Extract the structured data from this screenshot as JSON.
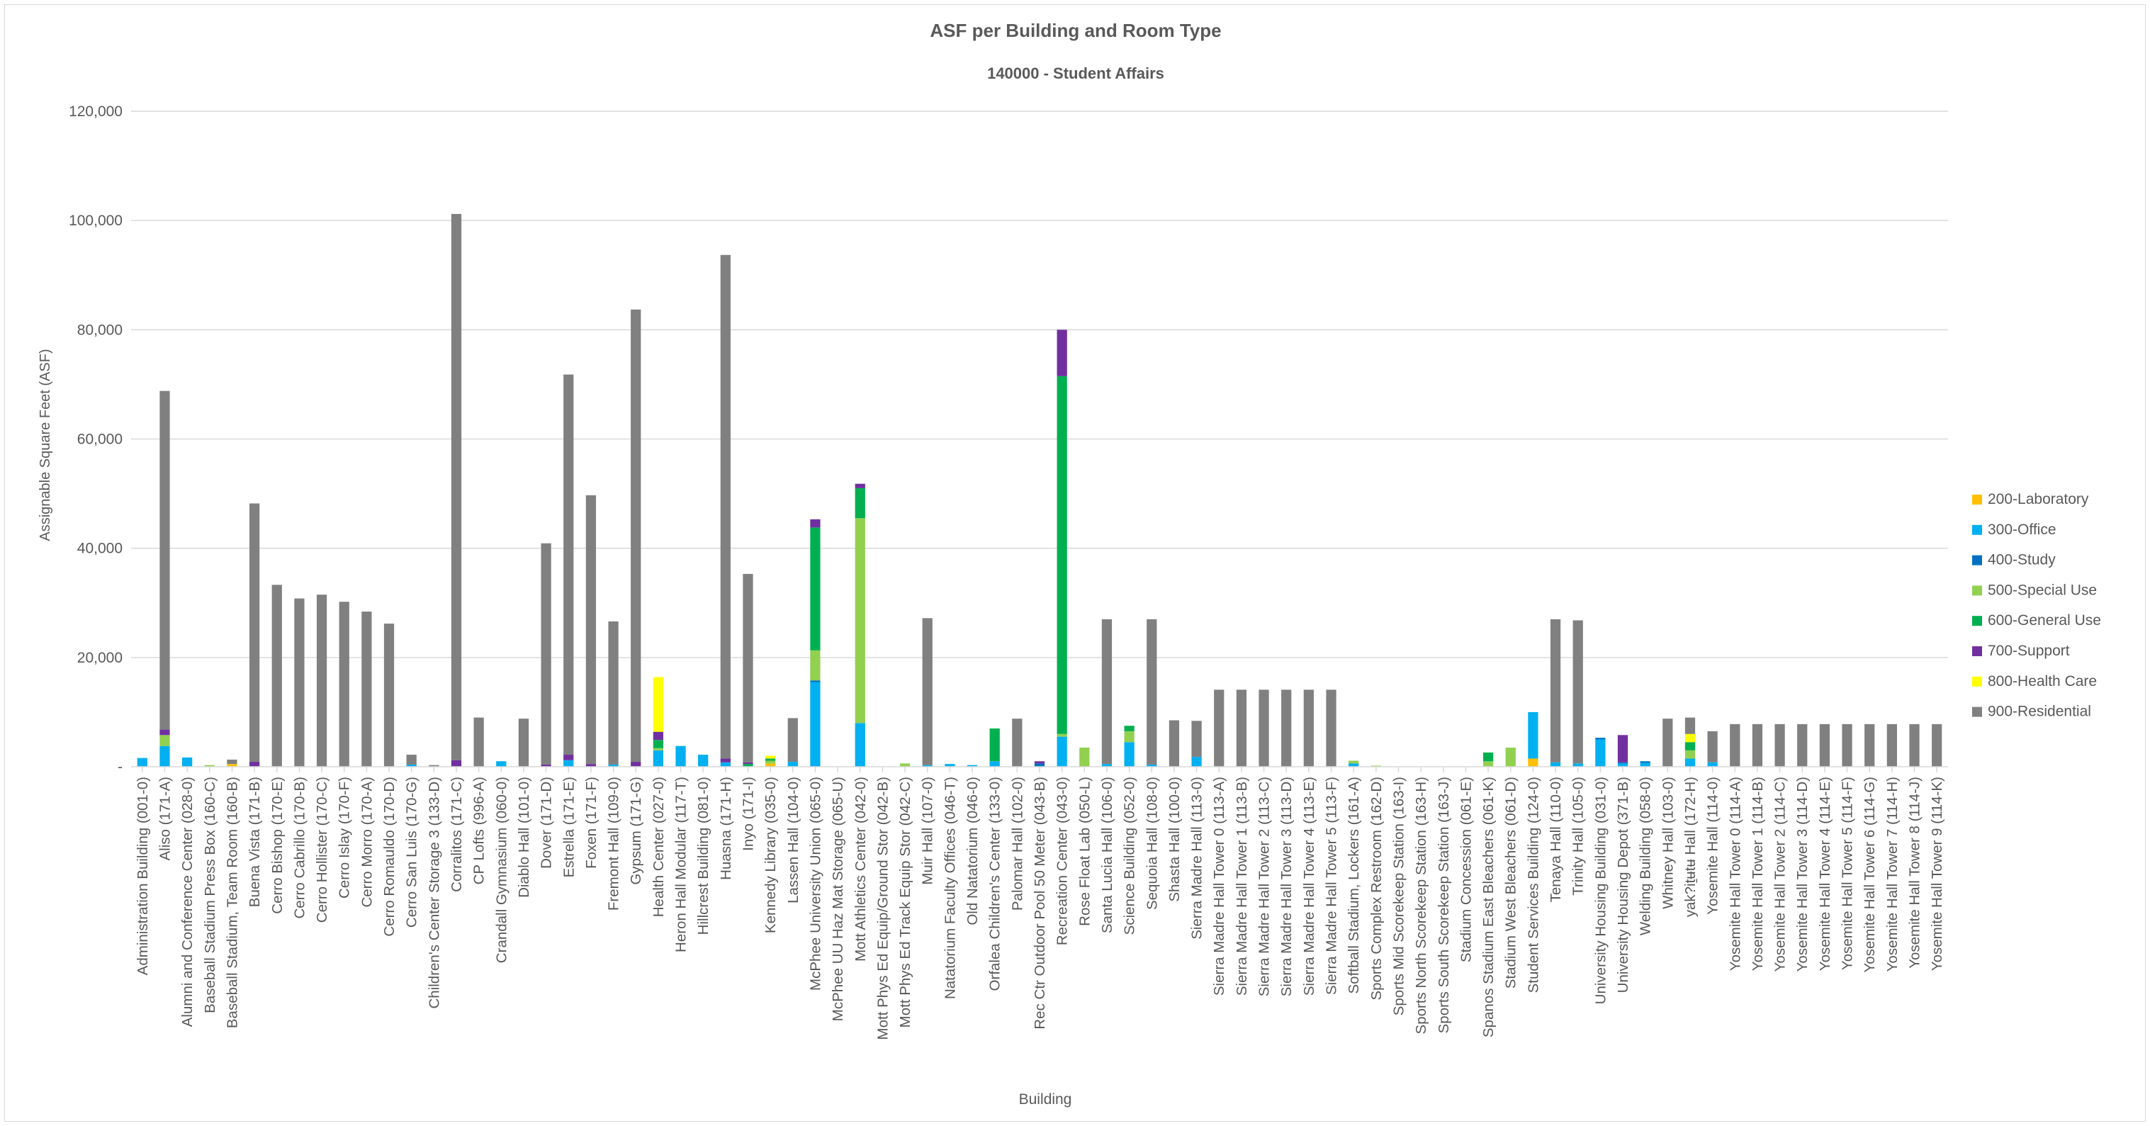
{
  "chart_data": {
    "type": "bar",
    "stacked": true,
    "title": "ASF per Building and Room Type",
    "subtitle": "140000 - Student Affairs",
    "xlabel": "Building",
    "ylabel": "Assignable Square Feet (ASF)",
    "ylim": [
      0,
      120000
    ],
    "yticks": [
      {
        "value": 0,
        "label": "-"
      },
      {
        "value": 20000,
        "label": "20,000"
      },
      {
        "value": 40000,
        "label": "40,000"
      },
      {
        "value": 60000,
        "label": "60,000"
      },
      {
        "value": 80000,
        "label": "80,000"
      },
      {
        "value": 100000,
        "label": "100,000"
      },
      {
        "value": 120000,
        "label": "120,000"
      }
    ],
    "grid": true,
    "legend_position": "right",
    "categories": [
      "Administration Building (001-0)",
      "Aliso (171-A)",
      "Alumni and Conference Center (028-0)",
      "Baseball Stadium Press Box (160-C)",
      "Baseball Stadium, Team Room (160-B)",
      "Buena Vista (171-B)",
      "Cerro Bishop (170-E)",
      "Cerro Cabrillo (170-B)",
      "Cerro Hollister (170-C)",
      "Cerro Islay (170-F)",
      "Cerro Morro (170-A)",
      "Cerro Romauldo (170-D)",
      "Cerro San Luis (170-G)",
      "Children's Center Storage 3 (133-D)",
      "Corralitos (171-C)",
      "CP Lofts (996-A)",
      "Crandall Gymnasium (060-0)",
      "Diablo Hall (101-0)",
      "Dover (171-D)",
      "Estrella (171-E)",
      "Foxen (171-F)",
      "Fremont Hall (109-0)",
      "Gypsum (171-G)",
      "Health Center (027-0)",
      "Heron Hall Modular (117-T)",
      "Hillcrest Building (081-0)",
      "Huasna (171-H)",
      "Inyo (171-I)",
      "Kennedy Library (035-0)",
      "Lassen Hall (104-0)",
      "McPhee University Union (065-0)",
      "McPhee UU Haz Mat Storage (065-U)",
      "Mott Athletics Center (042-0)",
      "Mott Phys Ed Equip/Ground Stor (042-B)",
      "Mott Phys Ed Track Equip Stor (042-C)",
      "Muir Hall (107-0)",
      "Natatorium Faculty Offices (046-T)",
      "Old Natatorium (046-0)",
      "Orfalea Children's Center (133-0)",
      "Palomar Hall (102-0)",
      "Rec Ctr Outdoor Pool 50 Meter (043-B)",
      "Recreation Center (043-0)",
      "Rose Float Lab (050-L)",
      "Santa Lucia Hall (106-0)",
      "Science Building (052-0)",
      "Sequoia Hall (108-0)",
      "Shasta Hall (100-0)",
      "Sierra Madre Hall (113-0)",
      "Sierra Madre Hall Tower 0 (113-A)",
      "Sierra Madre Hall Tower 1 (113-B)",
      "Sierra Madre Hall Tower 2 (113-C)",
      "Sierra Madre Hall Tower 3 (113-D)",
      "Sierra Madre Hall Tower 4 (113-E)",
      "Sierra Madre Hall Tower 5 (113-F)",
      "Softball Stadium, Lockers (161-A)",
      "Sports Complex Restroom (162-D)",
      "Sports Mid Scorekeep Station (163-I)",
      "Sports North Scorekeep Station (163-H)",
      "Sports South Scorekeep Station (163-J)",
      "Stadium Concession (061-E)",
      "Spanos Stadium East Bleachers (061-K)",
      "Stadium West Bleachers (061-D)",
      "Student Services Building (124-0)",
      "Tenaya Hall (110-0)",
      "Trinity Hall (105-0)",
      "University Housing Building (031-0)",
      "University Housing Depot (371-B)",
      "Welding Building (058-0)",
      "Whitney Hall (103-0)",
      "yak?iṯʉtʉ Hall (172-H)",
      "Yosemite Hall (114-0)",
      "Yosemite Hall Tower 0 (114-A)",
      "Yosemite Hall Tower 1 (114-B)",
      "Yosemite Hall Tower 2 (114-C)",
      "Yosemite Hall Tower 3 (114-D)",
      "Yosemite Hall Tower 4 (114-E)",
      "Yosemite Hall Tower 5 (114-F)",
      "Yosemite Hall Tower 6 (114-G)",
      "Yosemite Hall Tower 7 (114-H)",
      "Yosemite Hall Tower 8 (114-J)",
      "Yosemite Hall Tower 9 (114-K)"
    ],
    "series": [
      {
        "name": "200-Laboratory",
        "color": "#FFC000",
        "values": [
          0,
          0,
          0,
          0,
          500,
          0,
          0,
          0,
          0,
          0,
          0,
          0,
          0,
          0,
          0,
          0,
          0,
          0,
          0,
          0,
          0,
          0,
          0,
          0,
          0,
          0,
          0,
          0,
          600,
          0,
          0,
          0,
          0,
          0,
          0,
          0,
          0,
          0,
          0,
          0,
          0,
          0,
          0,
          0,
          0,
          0,
          0,
          0,
          0,
          0,
          0,
          0,
          0,
          0,
          0,
          0,
          0,
          0,
          0,
          0,
          0,
          0,
          1500,
          0,
          0,
          0,
          0,
          0,
          0,
          0,
          0,
          0,
          0,
          0,
          0,
          0,
          0,
          0,
          0,
          0,
          0
        ]
      },
      {
        "name": "300-Office",
        "color": "#00B0F0",
        "values": [
          1600,
          3800,
          1700,
          0,
          0,
          0,
          0,
          0,
          0,
          0,
          0,
          0,
          400,
          0,
          0,
          0,
          1000,
          0,
          0,
          1200,
          0,
          400,
          0,
          3000,
          3800,
          2200,
          800,
          0,
          0,
          900,
          15500,
          0,
          8000,
          0,
          0,
          300,
          500,
          300,
          1000,
          0,
          0,
          5500,
          0,
          500,
          4500,
          400,
          0,
          1800,
          0,
          0,
          0,
          0,
          0,
          0,
          600,
          0,
          0,
          0,
          0,
          0,
          0,
          0,
          8500,
          800,
          600,
          5000,
          600,
          700,
          0,
          1500,
          800,
          0,
          0,
          0,
          0,
          0,
          0,
          0,
          0,
          0,
          0
        ]
      },
      {
        "name": "400-Study",
        "color": "#0070C0",
        "values": [
          0,
          0,
          0,
          0,
          0,
          0,
          0,
          0,
          0,
          0,
          0,
          0,
          0,
          0,
          0,
          0,
          0,
          0,
          0,
          0,
          0,
          0,
          0,
          0,
          0,
          0,
          0,
          0,
          0,
          0,
          300,
          0,
          0,
          0,
          0,
          0,
          0,
          0,
          0,
          0,
          600,
          0,
          0,
          0,
          0,
          0,
          0,
          0,
          0,
          0,
          0,
          0,
          0,
          0,
          0,
          0,
          0,
          0,
          0,
          0,
          0,
          0,
          0,
          0,
          0,
          300,
          200,
          300,
          0,
          0,
          0,
          0,
          0,
          0,
          0,
          0,
          0,
          0,
          0,
          0,
          0
        ]
      },
      {
        "name": "500-Special Use",
        "color": "#92D050",
        "values": [
          0,
          2000,
          0,
          300,
          0,
          0,
          0,
          0,
          0,
          0,
          0,
          0,
          0,
          0,
          0,
          0,
          0,
          0,
          0,
          0,
          0,
          0,
          0,
          400,
          0,
          0,
          0,
          0,
          500,
          0,
          5500,
          0,
          37500,
          0,
          600,
          0,
          0,
          0,
          0,
          0,
          0,
          500,
          3500,
          0,
          2000,
          0,
          0,
          0,
          0,
          0,
          0,
          0,
          0,
          0,
          500,
          200,
          0,
          0,
          0,
          0,
          1000,
          3500,
          0,
          0,
          0,
          0,
          0,
          0,
          0,
          1500,
          0,
          0,
          0,
          0,
          0,
          0,
          0,
          0,
          0,
          0,
          0
        ]
      },
      {
        "name": "600-General Use",
        "color": "#00B050",
        "values": [
          0,
          0,
          0,
          0,
          0,
          0,
          0,
          0,
          0,
          0,
          0,
          0,
          0,
          0,
          0,
          0,
          0,
          0,
          0,
          0,
          0,
          0,
          0,
          1500,
          0,
          0,
          0,
          500,
          400,
          0,
          22500,
          0,
          5500,
          0,
          0,
          0,
          0,
          0,
          6000,
          0,
          0,
          65500,
          0,
          0,
          1000,
          0,
          0,
          0,
          0,
          0,
          0,
          0,
          0,
          0,
          0,
          0,
          0,
          0,
          0,
          0,
          1600,
          0,
          0,
          0,
          0,
          0,
          0,
          0,
          0,
          1500,
          0,
          0,
          0,
          0,
          0,
          0,
          0,
          0,
          0,
          0,
          0
        ]
      },
      {
        "name": "700-Support",
        "color": "#7030A0",
        "values": [
          0,
          1000,
          0,
          0,
          0,
          900,
          0,
          0,
          0,
          0,
          0,
          0,
          0,
          0,
          1200,
          0,
          0,
          0,
          400,
          1000,
          500,
          0,
          900,
          1500,
          0,
          0,
          700,
          300,
          0,
          0,
          1500,
          0,
          800,
          0,
          0,
          0,
          0,
          0,
          0,
          0,
          400,
          8500,
          0,
          0,
          0,
          0,
          0,
          0,
          0,
          0,
          0,
          0,
          0,
          0,
          0,
          0,
          0,
          0,
          0,
          0,
          0,
          0,
          0,
          0,
          0,
          0,
          5000,
          0,
          0,
          0,
          0,
          0,
          0,
          0,
          0,
          0,
          0,
          0,
          0,
          0,
          0
        ]
      },
      {
        "name": "800-Health Care",
        "color": "#FFFF00",
        "values": [
          0,
          0,
          0,
          0,
          0,
          0,
          0,
          0,
          0,
          0,
          0,
          0,
          0,
          0,
          0,
          0,
          0,
          0,
          0,
          0,
          0,
          0,
          0,
          10000,
          0,
          0,
          0,
          0,
          500,
          0,
          0,
          0,
          0,
          0,
          0,
          0,
          0,
          0,
          0,
          0,
          0,
          0,
          0,
          0,
          0,
          0,
          0,
          0,
          0,
          0,
          0,
          0,
          0,
          0,
          0,
          0,
          0,
          0,
          0,
          0,
          0,
          0,
          0,
          0,
          0,
          0,
          0,
          0,
          0,
          1500,
          0,
          0,
          0,
          0,
          0,
          0,
          0,
          0,
          0,
          0,
          0
        ]
      },
      {
        "name": "900-Residential",
        "color": "#808080",
        "values": [
          0,
          62000,
          0,
          0,
          800,
          47300,
          33300,
          30800,
          31500,
          30200,
          28400,
          26200,
          1800,
          300,
          100000,
          9000,
          0,
          8800,
          40500,
          69600,
          49200,
          26200,
          82800,
          0,
          0,
          0,
          92200,
          34500,
          0,
          8000,
          0,
          0,
          0,
          0,
          0,
          26900,
          0,
          0,
          0,
          8800,
          0,
          0,
          0,
          26500,
          0,
          26600,
          8500,
          6600,
          14100,
          14100,
          14100,
          14100,
          14100,
          14100,
          0,
          0,
          0,
          0,
          0,
          0,
          0,
          0,
          0,
          26200,
          26200,
          0,
          0,
          0,
          8800,
          3000,
          5700,
          7800,
          7800,
          7800,
          7800,
          7800,
          7800,
          7800,
          7800,
          7800,
          7800
        ]
      }
    ]
  }
}
